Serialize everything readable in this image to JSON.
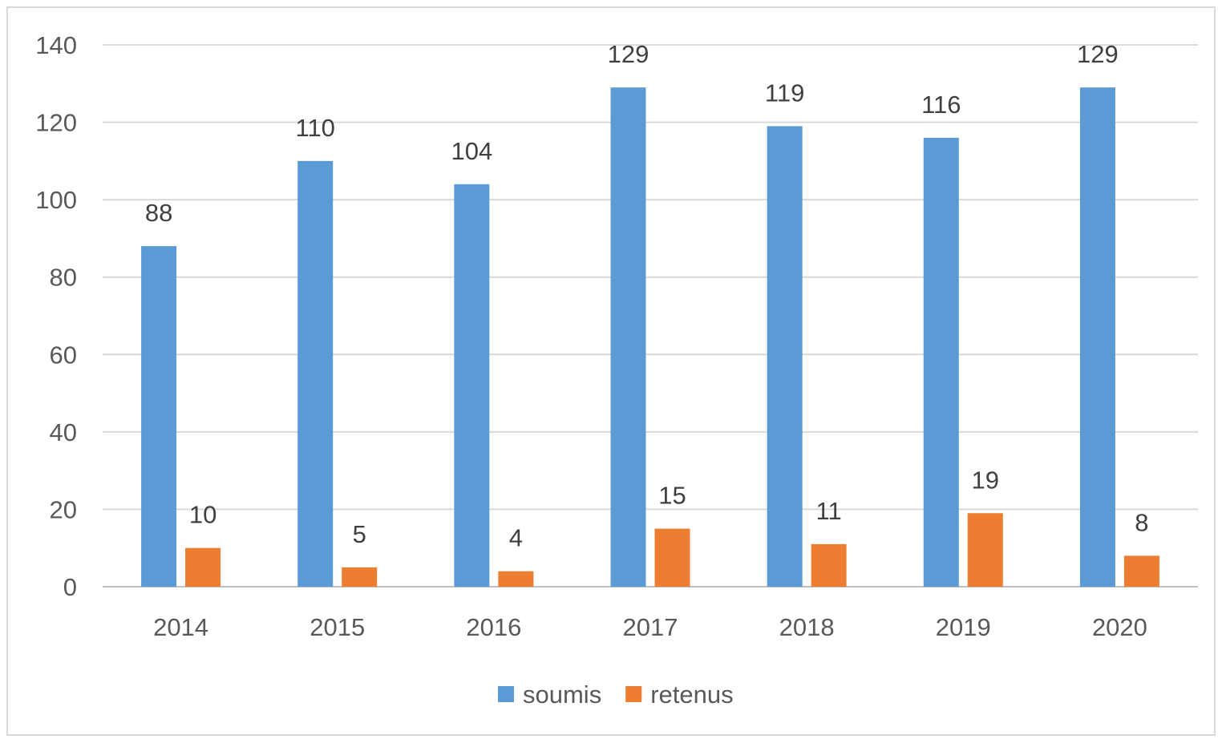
{
  "chart_data": {
    "type": "bar",
    "title": "",
    "xlabel": "",
    "ylabel": "",
    "categories": [
      "2014",
      "2015",
      "2016",
      "2017",
      "2018",
      "2019",
      "2020"
    ],
    "series": [
      {
        "name": "soumis",
        "color": "#5b9bd5",
        "values": [
          88,
          110,
          104,
          129,
          119,
          116,
          129
        ]
      },
      {
        "name": "retenus",
        "color": "#ed7d31",
        "values": [
          10,
          5,
          4,
          15,
          11,
          19,
          8
        ]
      }
    ],
    "ylim": [
      0,
      140
    ],
    "yticks": [
      0,
      20,
      40,
      60,
      80,
      100,
      120,
      140
    ],
    "grid": true,
    "legend_position": "bottom",
    "data_labels": true
  }
}
